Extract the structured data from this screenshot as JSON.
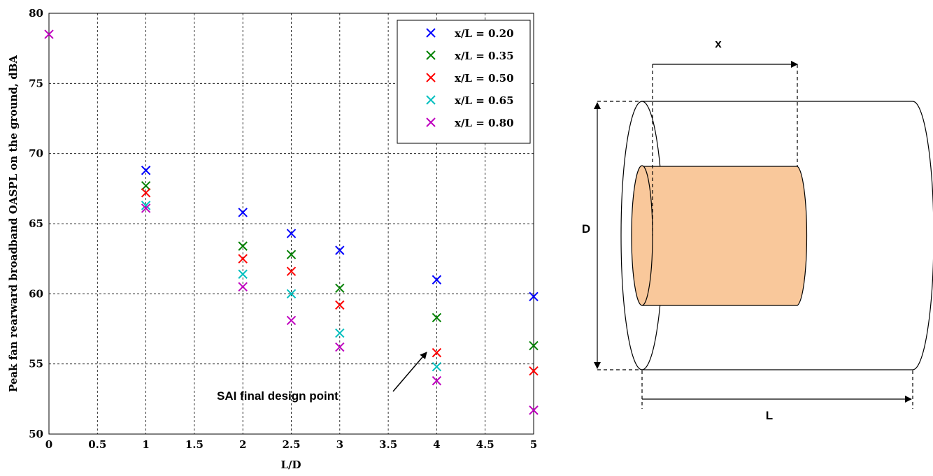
{
  "chart_data": {
    "type": "scatter",
    "xlabel": "L/D",
    "ylabel": "Peak fan rearward broadband OASPL on the ground, dBA",
    "x": [
      0,
      1,
      2,
      2.5,
      3,
      4,
      5
    ],
    "series": [
      {
        "name": "x/L = 0.20",
        "color": "#0000ff",
        "values": [
          null,
          68.8,
          65.8,
          64.3,
          63.1,
          61.0,
          59.8
        ]
      },
      {
        "name": "x/L = 0.35",
        "color": "#008000",
        "values": [
          null,
          67.7,
          63.4,
          62.8,
          60.4,
          58.3,
          56.3
        ]
      },
      {
        "name": "x/L = 0.50",
        "color": "#ff0000",
        "values": [
          null,
          67.2,
          62.5,
          61.6,
          59.2,
          55.8,
          54.5
        ]
      },
      {
        "name": "x/L = 0.65",
        "color": "#00bfbf",
        "values": [
          null,
          66.3,
          61.4,
          60.0,
          57.2,
          54.8,
          null
        ]
      },
      {
        "name": "x/L = 0.80",
        "color": "#bf00bf",
        "values": [
          78.5,
          66.1,
          60.5,
          58.1,
          56.2,
          53.8,
          51.7
        ]
      }
    ],
    "xlim": [
      0,
      5
    ],
    "xticks": [
      0,
      0.5,
      1,
      1.5,
      2,
      2.5,
      3,
      3.5,
      4,
      4.5,
      5
    ],
    "ylim": [
      50,
      80
    ],
    "yticks": [
      50,
      55,
      60,
      65,
      70,
      75,
      80
    ],
    "grid": true,
    "legend": "upper right",
    "annotation": "SAI final design point"
  },
  "diagram": {
    "labels": {
      "x": "x",
      "D": "D",
      "L": "L"
    }
  }
}
